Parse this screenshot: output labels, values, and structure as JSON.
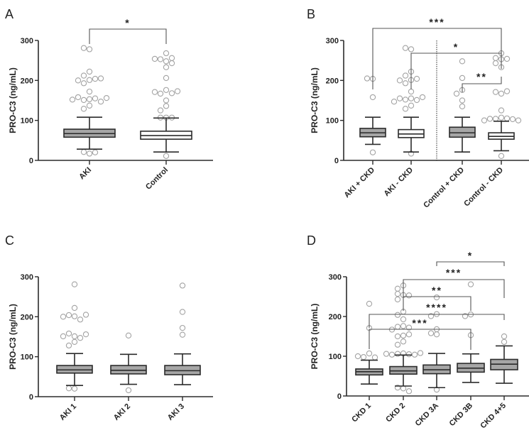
{
  "figure": {
    "panels": [
      "A",
      "B",
      "C",
      "D"
    ]
  },
  "chart_data": [
    {
      "panel": "A",
      "type": "box",
      "ylabel": "PRO-C3 (ng/mL)",
      "ylim": [
        0,
        300
      ],
      "yticks": [
        0,
        100,
        200,
        300
      ],
      "categories": [
        "AKI",
        "Control"
      ],
      "boxes": [
        {
          "name": "AKI",
          "fill": "#a6a6a6",
          "whisker_low": 28,
          "q1": 58,
          "median": 67,
          "q3": 78,
          "whisker_high": 108,
          "outliers": [
            278,
            281,
            222,
            212,
            201,
            204,
            200,
            205,
            193,
            172,
            153,
            151,
            155,
            158,
            147,
            152,
            156,
            137,
            129,
            17,
            21,
            20
          ]
        },
        {
          "name": "Control",
          "fill": "#ffffff",
          "whisker_low": 21,
          "q1": 53,
          "median": 62,
          "q3": 73,
          "whisker_high": 106,
          "outliers": [
            268,
            248,
            253,
            256,
            243,
            254,
            233,
            206,
            176,
            167,
            168,
            171,
            173,
            150,
            136,
            125,
            107,
            107,
            107,
            11
          ]
        }
      ],
      "significance": [
        {
          "from": "AKI",
          "to": "Control",
          "label": "*"
        }
      ]
    },
    {
      "panel": "B",
      "type": "box",
      "ylabel": "PRO-C3 (ng/mL)",
      "ylim": [
        0,
        300
      ],
      "yticks": [
        0,
        100,
        200,
        300
      ],
      "categories": [
        "AKI + CKD",
        "AKI - CKD",
        "Control + CKD",
        "Control - CKD"
      ],
      "divider_after": "AKI - CKD",
      "boxes": [
        {
          "name": "AKI + CKD",
          "fill": "#a6a6a6",
          "whisker_low": 40,
          "q1": 59,
          "median": 69,
          "q3": 80,
          "whisker_high": 108,
          "outliers": [
            204,
            205,
            158,
            20
          ]
        },
        {
          "name": "AKI - CKD",
          "fill": "#ffffff",
          "whisker_low": 21,
          "q1": 57,
          "median": 66,
          "q3": 77,
          "whisker_high": 108,
          "outliers": [
            278,
            281,
            222,
            212,
            201,
            204,
            200,
            193,
            172,
            155,
            152,
            151,
            155,
            158,
            147,
            137,
            129,
            17
          ]
        },
        {
          "name": "Control + CKD",
          "fill": "#a6a6a6",
          "whisker_low": 21,
          "q1": 58,
          "median": 69,
          "q3": 83,
          "whisker_high": 108,
          "outliers": [
            248,
            206,
            176,
            167,
            150,
            135
          ]
        },
        {
          "name": "Control - CKD",
          "fill": "#ffffff",
          "whisker_low": 24,
          "q1": 53,
          "median": 60,
          "q3": 69,
          "whisker_high": 98,
          "outliers": [
            268,
            253,
            256,
            243,
            254,
            233,
            167,
            171,
            173,
            125,
            107,
            104,
            105,
            104,
            103,
            100,
            100,
            11
          ]
        }
      ],
      "significance": [
        {
          "from": "AKI + CKD",
          "to": "Control - CKD",
          "label": "***"
        },
        {
          "from": "AKI - CKD",
          "to": "Control - CKD",
          "label": "*"
        },
        {
          "from": "Control + CKD",
          "to": "Control - CKD",
          "label": "**"
        }
      ]
    },
    {
      "panel": "C",
      "type": "box",
      "ylabel": "PRO-C3 (ng/mL)",
      "ylim": [
        0,
        300
      ],
      "yticks": [
        0,
        100,
        200,
        300
      ],
      "categories": [
        "AKI 1",
        "AKI 2",
        "AKI 3"
      ],
      "boxes": [
        {
          "name": "AKI 1",
          "fill": "#a6a6a6",
          "whisker_low": 28,
          "q1": 59,
          "median": 67,
          "q3": 78,
          "whisker_high": 108,
          "outliers": [
            281,
            222,
            201,
            204,
            193,
            200,
            205,
            151,
            158,
            147,
            151,
            156,
            137,
            128,
            20,
            21
          ]
        },
        {
          "name": "AKI 2",
          "fill": "#a6a6a6",
          "whisker_low": 31,
          "q1": 57,
          "median": 66,
          "q3": 78,
          "whisker_high": 106,
          "outliers": [
            153,
            16
          ]
        },
        {
          "name": "AKI 3",
          "fill": "#a6a6a6",
          "whisker_low": 30,
          "q1": 55,
          "median": 65,
          "q3": 78,
          "whisker_high": 107,
          "outliers": [
            278,
            212,
            172,
            155
          ]
        }
      ],
      "significance": []
    },
    {
      "panel": "D",
      "type": "box",
      "ylabel": "PRO-C3 (ng/mL)",
      "ylim": [
        0,
        300
      ],
      "yticks": [
        0,
        100,
        200,
        300
      ],
      "categories": [
        "CKD 1",
        "CKD 2",
        "CKD 3A",
        "CKD 3B",
        "CKD 4+5"
      ],
      "boxes": [
        {
          "name": "CKD 1",
          "fill": "#a6a6a6",
          "whisker_low": 30,
          "q1": 53,
          "median": 61,
          "q3": 68,
          "whisker_high": 90,
          "outliers": [
            232,
            171,
            107,
            98,
            97,
            100
          ]
        },
        {
          "name": "CKD 2",
          "fill": "#a6a6a6",
          "whisker_low": 25,
          "q1": 55,
          "median": 63,
          "q3": 74,
          "whisker_high": 103,
          "outliers": [
            278,
            270,
            254,
            257,
            253,
            243,
            212,
            204,
            193,
            176,
            174,
            172,
            167,
            152,
            150,
            155,
            137,
            129,
            107,
            106,
            105,
            104,
            104,
            106,
            108,
            19,
            21,
            12
          ]
        },
        {
          "name": "CKD 3A",
          "fill": "#a6a6a6",
          "whisker_low": 21,
          "q1": 56,
          "median": 66,
          "q3": 78,
          "whisker_high": 107,
          "outliers": [
            248,
            206,
            201,
            168,
            155,
            158,
            16
          ]
        },
        {
          "name": "CKD 3B",
          "fill": "#a6a6a6",
          "whisker_low": 34,
          "q1": 60,
          "median": 70,
          "q3": 82,
          "whisker_high": 106,
          "outliers": [
            281,
            205,
            201,
            153
          ]
        },
        {
          "name": "CKD 4+5",
          "fill": "#a6a6a6",
          "whisker_low": 32,
          "q1": 66,
          "median": 80,
          "q3": 92,
          "whisker_high": 126,
          "outliers": [
            150,
            136
          ]
        }
      ],
      "significance": [
        {
          "from": "CKD 3A",
          "to": "CKD 4+5",
          "label": "*"
        },
        {
          "from": "CKD 2",
          "to": "CKD 4+5",
          "label": "***"
        },
        {
          "from": "CKD 2",
          "to": "CKD 3B",
          "label": "**"
        },
        {
          "from": "CKD 1",
          "to": "CKD 4+5",
          "label": "****"
        },
        {
          "from": "CKD 1",
          "to": "CKD 3B",
          "label": "***"
        }
      ]
    }
  ]
}
